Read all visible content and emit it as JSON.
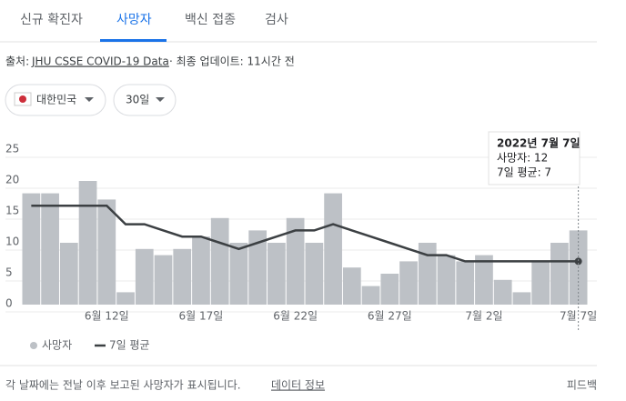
{
  "tabs": [
    "신규 확진자",
    "사망자",
    "백신 접종",
    "검사"
  ],
  "source": {
    "prefix": "출처:",
    "link": "JHU CSSE COVID-19 Data",
    "updated": "· 최종 업데이트: 11시간 전"
  },
  "filters": [
    "대한민국",
    "30일"
  ],
  "chart_data": {
    "type": "bar",
    "categories": [
      null,
      null,
      null,
      null,
      "6월 12일",
      null,
      null,
      null,
      null,
      "6월 17일",
      null,
      null,
      null,
      null,
      "6월 22일",
      null,
      null,
      null,
      null,
      "6월 27일",
      null,
      null,
      null,
      null,
      "7월 2일",
      null,
      null,
      null,
      null,
      "7월 7일"
    ],
    "series": [
      {
        "name": "사망자",
        "type": "bar",
        "color": "#bdc1c6",
        "values": [
          18,
          18,
          10,
          20,
          17,
          2,
          9,
          8,
          9,
          11,
          14,
          10,
          12,
          10,
          14,
          10,
          18,
          6,
          3,
          5,
          7,
          10,
          8,
          7,
          8,
          4,
          2,
          7,
          10,
          12
        ]
      },
      {
        "name": "7일 평균",
        "type": "line",
        "color": "#3c4043",
        "values": [
          16,
          16,
          16,
          16,
          16,
          13,
          13,
          12,
          11,
          11,
          10,
          9,
          10,
          11,
          12,
          12,
          13,
          12,
          11,
          10,
          9,
          8,
          8,
          7,
          7,
          7,
          7,
          7,
          7,
          7
        ]
      }
    ],
    "ylim": [
      0,
      25
    ],
    "yticks": [
      0,
      5,
      10,
      15,
      20,
      25
    ],
    "grid": true,
    "tooltip": {
      "title": "2022년 7월 7일",
      "lines": [
        "사망자: 12",
        "7일 평균: 7"
      ]
    }
  },
  "footer": {
    "note": "각 날짜에는 전날 이후 보고된 사망자가 표시됩니다.",
    "link": "데이터 정보",
    "feedback": "피드백"
  }
}
